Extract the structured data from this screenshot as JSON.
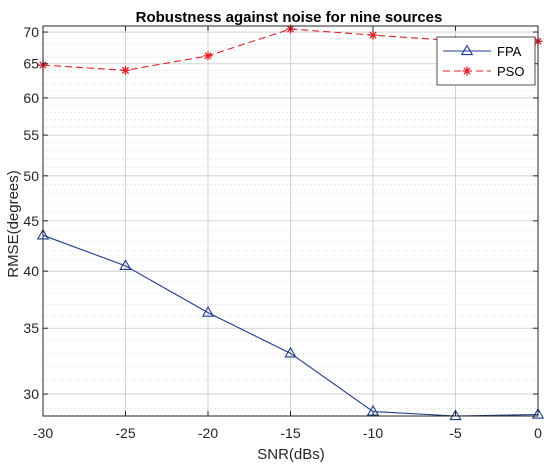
{
  "chart_data": {
    "type": "line",
    "title": "Robustness against noise for nine sources",
    "xlabel": "SNR(dBs)",
    "ylabel": "RMSE(degrees)",
    "yscale": "log",
    "grid": true,
    "minor_grid": true,
    "legend_position": "top-right",
    "xlim": [
      -30,
      0
    ],
    "ylim": [
      28.5,
      71
    ],
    "x": [
      -30,
      -25,
      -20,
      -15,
      -10,
      -5,
      0
    ],
    "x_ticks": [
      "-30",
      "-25",
      "-20",
      "-15",
      "-10",
      "-5",
      "0"
    ],
    "y_ticks": [
      "30",
      "35",
      "40",
      "45",
      "50",
      "55",
      "60",
      "65",
      "70"
    ],
    "y_tick_values": [
      30,
      35,
      40,
      45,
      50,
      55,
      60,
      65,
      70
    ],
    "series": [
      {
        "name": "FPA",
        "values": [
          43.5,
          40.5,
          36.3,
          33.0,
          28.8,
          28.5,
          28.6
        ],
        "color": "#1f3c8c",
        "marker": "triangle",
        "line_style": "solid"
      },
      {
        "name": "PSO",
        "values": [
          64.8,
          64.0,
          66.2,
          70.5,
          69.5,
          68.6,
          68.5
        ],
        "color": "#e0202a",
        "marker": "star",
        "line_style": "dashed"
      }
    ]
  }
}
